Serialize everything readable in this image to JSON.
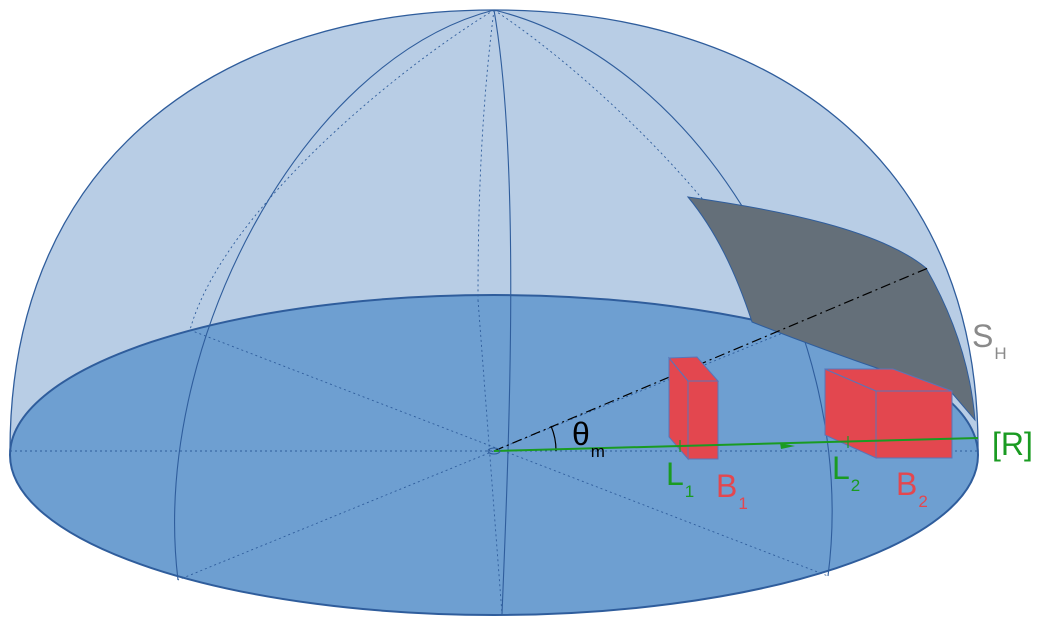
{
  "colors": {
    "dome": "#b8cde5",
    "dome_stroke": "#2f5d9c",
    "base": "#6e9fd1",
    "shadow": "#646f79",
    "building": "#e3474f",
    "building_stroke": "#5a74b8",
    "ray": "#1a9b22",
    "label_angle": "#000000",
    "label_shadow": "#8a8a8a",
    "label_L": "#1a9b22",
    "label_B": "#e3474f",
    "label_R": "#1a9b22"
  },
  "labels": {
    "angle": {
      "main": "θ",
      "sub": "m"
    },
    "shadow_surface": {
      "main": "S",
      "sub": "H"
    },
    "receiver": {
      "main": "[R]"
    },
    "L1": {
      "main": "L",
      "sub": "1"
    },
    "B1": {
      "main": "B",
      "sub": "1"
    },
    "L2": {
      "main": "L",
      "sub": "2"
    },
    "B2": {
      "main": "B",
      "sub": "2"
    }
  }
}
